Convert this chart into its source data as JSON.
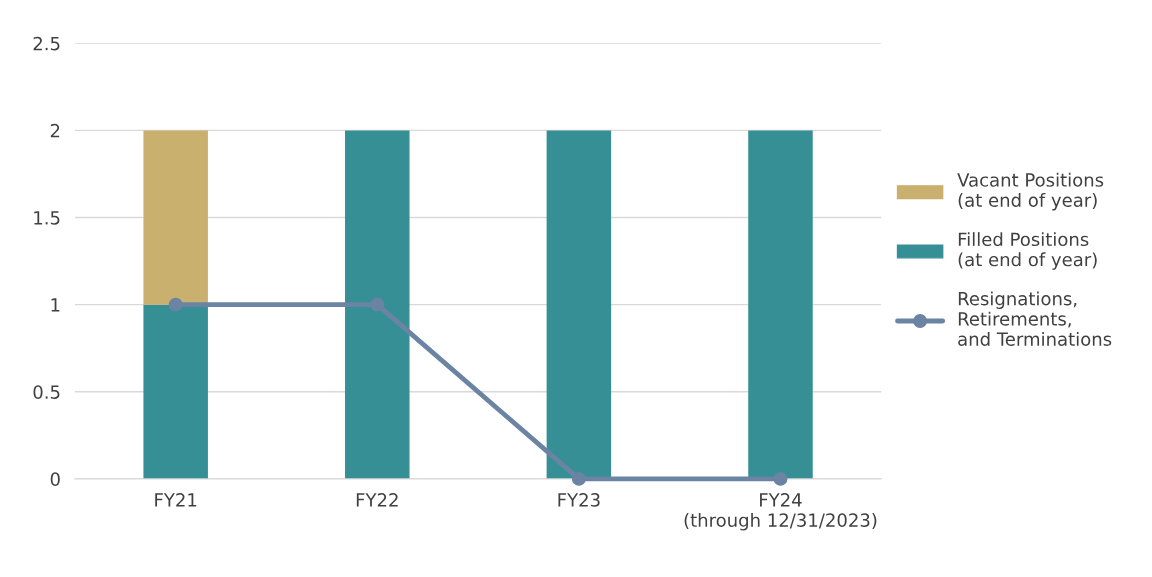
{
  "chart_data": {
    "type": "bar",
    "stacked": true,
    "categories": [
      "FY21",
      "FY22",
      "FY23",
      "FY24\n(through 12/31/2023)"
    ],
    "series": [
      {
        "name": "Filled Positions\n(at end of year)",
        "color": "#368f94",
        "values": [
          1,
          2,
          2,
          2
        ]
      },
      {
        "name": "Vacant Positions\n(at end of year)",
        "color": "#c9b06e",
        "values": [
          1,
          null,
          null,
          null
        ]
      },
      {
        "name": "Resignations,\nRetirements,\nand Terminations",
        "color": "#6b84a3",
        "type": "line",
        "marker": "circle",
        "values": [
          1,
          1,
          0,
          0
        ]
      }
    ],
    "ylim": [
      0,
      2.5
    ],
    "yticks": [
      0,
      0.5,
      1,
      1.5,
      2,
      2.5
    ],
    "grid": "y",
    "legend": "right"
  }
}
